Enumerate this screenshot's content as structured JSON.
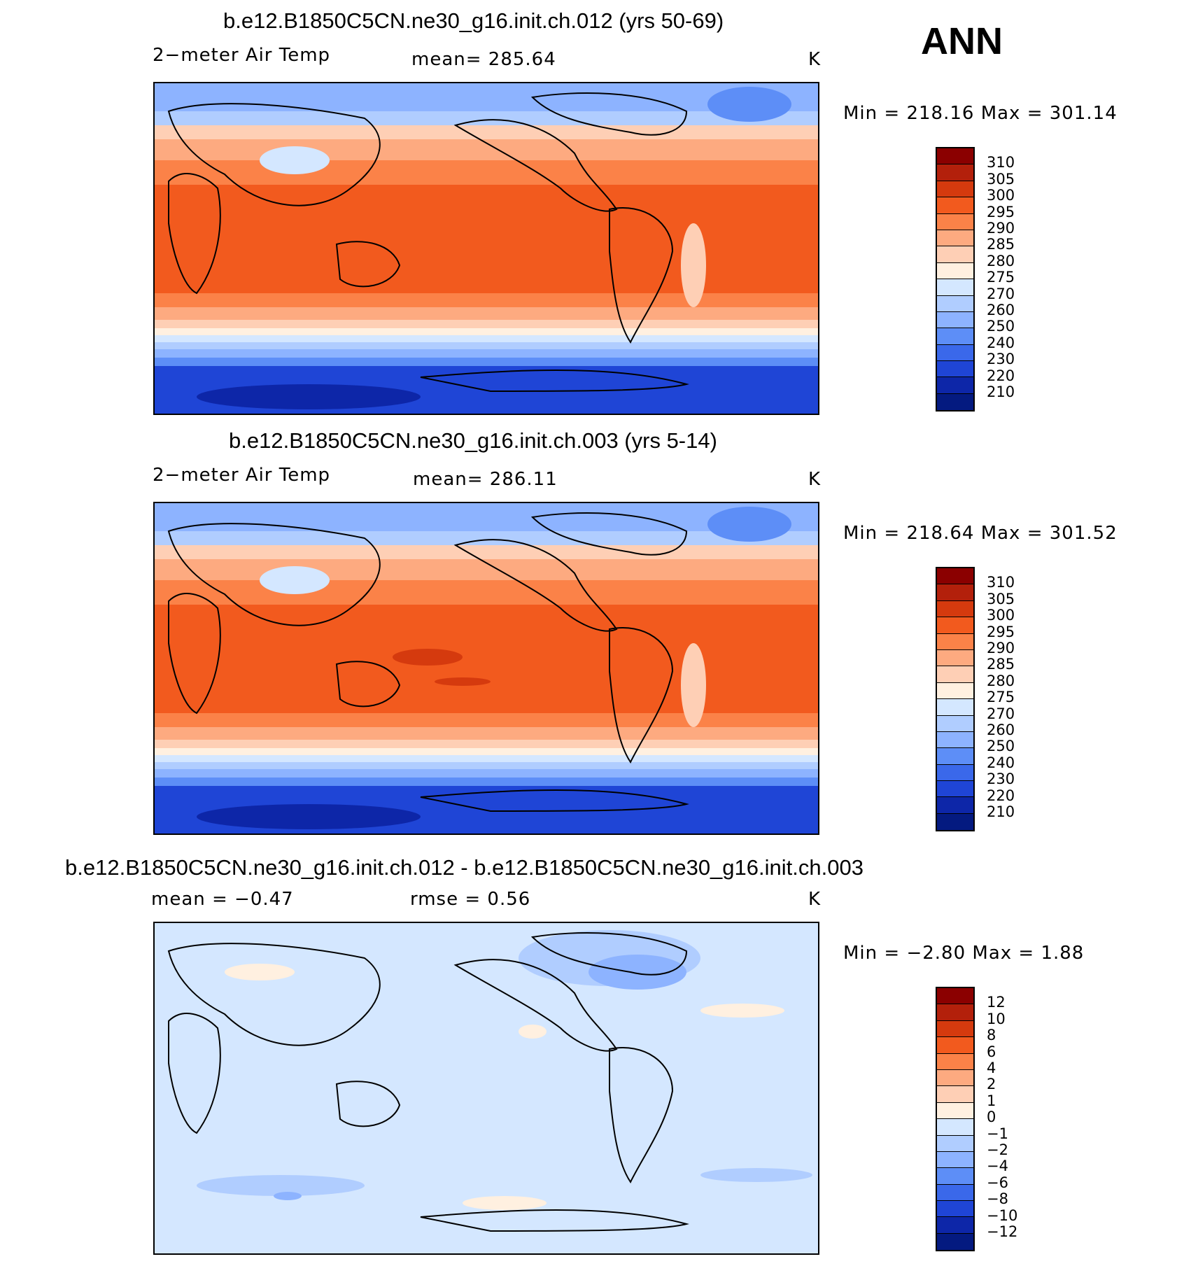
{
  "season": "ANN",
  "panels": [
    {
      "title": "b.e12.B1850C5CN.ne30_g16.init.ch.012 (yrs 50-69)",
      "left_label": "2−meter Air Temp",
      "center_label": "mean=  285.64",
      "units": "K",
      "minmax": "Min  =  218.16  Max  =  301.14",
      "colorbar": {
        "labels": [
          "310",
          "305",
          "300",
          "295",
          "290",
          "285",
          "280",
          "275",
          "270",
          "260",
          "250",
          "240",
          "230",
          "220",
          "210"
        ],
        "colors": [
          "#8b0000",
          "#b3200b",
          "#d53a0e",
          "#f25a1e",
          "#fb8248",
          "#fdaa80",
          "#fecfb5",
          "#fff0e0",
          "#d4e7ff",
          "#b0cdff",
          "#8db3ff",
          "#5d8ef7",
          "#3a68ea",
          "#1f45d6",
          "#0d26a8",
          "#041a80"
        ]
      }
    },
    {
      "title": "b.e12.B1850C5CN.ne30_g16.init.ch.003 (yrs 5-14)",
      "left_label": "2−meter Air Temp",
      "center_label": "mean=  286.11",
      "units": "K",
      "minmax": "Min  =  218.64  Max  =  301.52",
      "colorbar": {
        "labels": [
          "310",
          "305",
          "300",
          "295",
          "290",
          "285",
          "280",
          "275",
          "270",
          "260",
          "250",
          "240",
          "230",
          "220",
          "210"
        ],
        "colors": [
          "#8b0000",
          "#b3200b",
          "#d53a0e",
          "#f25a1e",
          "#fb8248",
          "#fdaa80",
          "#fecfb5",
          "#fff0e0",
          "#d4e7ff",
          "#b0cdff",
          "#8db3ff",
          "#5d8ef7",
          "#3a68ea",
          "#1f45d6",
          "#0d26a8",
          "#041a80"
        ]
      }
    },
    {
      "title": "b.e12.B1850C5CN.ne30_g16.init.ch.012 - b.e12.B1850C5CN.ne30_g16.init.ch.003",
      "left_label": "mean  =    −0.47",
      "center_label": "rmse  =     0.56",
      "units": "K",
      "minmax": "Min  =    −2.80  Max  =     1.88",
      "colorbar": {
        "labels": [
          "12",
          "10",
          "8",
          "6",
          "4",
          "2",
          "1",
          "0",
          "−1",
          "−2",
          "−4",
          "−6",
          "−8",
          "−10",
          "−12"
        ],
        "colors": [
          "#8b0000",
          "#b3200b",
          "#d53a0e",
          "#f25a1e",
          "#fb8248",
          "#fdaa80",
          "#fecfb5",
          "#fff0e0",
          "#d4e7ff",
          "#b0cdff",
          "#8db3ff",
          "#5d8ef7",
          "#3a68ea",
          "#1f45d6",
          "#0d26a8",
          "#041a80"
        ]
      }
    }
  ]
}
